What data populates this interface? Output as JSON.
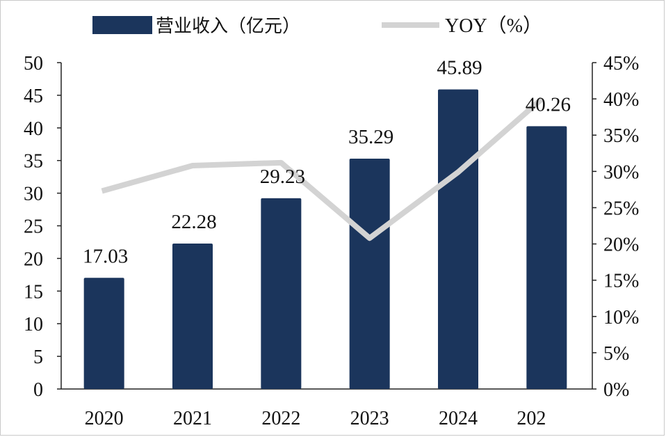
{
  "chart_data": {
    "type": "bar",
    "categories": [
      "2020",
      "2021",
      "2022",
      "2023",
      "2024",
      "202"
    ],
    "legend": {
      "placement": "top",
      "bar_label": "营业收入（亿元）",
      "line_label": "YOY（%）"
    },
    "series": [
      {
        "name": "营业收入（亿元）",
        "type": "bar",
        "axis": "left",
        "color": "#1b355c",
        "values": [
          17.03,
          22.28,
          29.23,
          35.29,
          45.89,
          40.26
        ],
        "labels": [
          "17.03",
          "22.28",
          "29.23",
          "35.29",
          "45.89",
          "40.26"
        ]
      },
      {
        "name": "YOY（%）",
        "type": "line",
        "axis": "right",
        "color": "#d3d3d3",
        "values": [
          27.3,
          30.8,
          31.2,
          20.8,
          29.9,
          40.0
        ]
      }
    ],
    "y_left": {
      "ylim": [
        0,
        50
      ],
      "ticks": [
        "0",
        "5",
        "10",
        "15",
        "20",
        "25",
        "30",
        "35",
        "40",
        "45",
        "50"
      ]
    },
    "y_right": {
      "ylim": [
        0,
        45
      ],
      "ticks": [
        "0%",
        "5%",
        "10%",
        "15%",
        "20%",
        "25%",
        "30%",
        "35%",
        "40%",
        "45%"
      ]
    },
    "grid": false
  }
}
